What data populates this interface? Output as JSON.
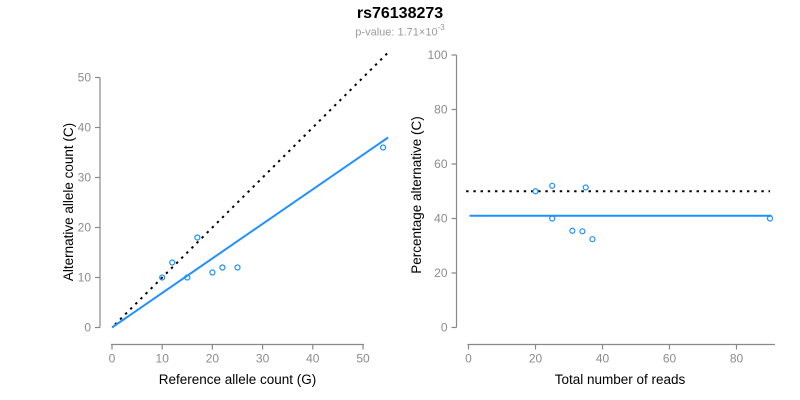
{
  "header": {
    "title": "rs76138273",
    "pvalue_text": "p-value: 1.71×10",
    "pvalue_exponent": "-3"
  },
  "colors": {
    "accent_blue": "#1E90FF",
    "line_black": "#000000",
    "axis_gray": "#888888",
    "tick_text_gray": "#8C8C8C",
    "subtitle_gray": "#9A9A9A"
  },
  "chart_data": [
    {
      "type": "scatter",
      "panel": "allele-counts",
      "xlabel": "Reference allele count (G)",
      "ylabel": "Alternative allele count (C)",
      "xticks": [
        0,
        10,
        20,
        30,
        40,
        50
      ],
      "yticks": [
        0,
        10,
        20,
        30,
        40,
        50
      ],
      "xlim": [
        0,
        55
      ],
      "ylim": [
        0,
        55
      ],
      "grid": false,
      "points": [
        [
          10,
          10
        ],
        [
          12,
          13
        ],
        [
          15,
          10
        ],
        [
          17,
          18
        ],
        [
          20,
          11
        ],
        [
          22,
          12
        ],
        [
          25,
          12
        ],
        [
          54,
          36
        ]
      ],
      "lines": [
        {
          "name": "identity-line",
          "style": "dotted",
          "color": "#000000",
          "from": [
            0.6,
            0.6
          ],
          "to": [
            54.8,
            54.8
          ]
        },
        {
          "name": "fit-line",
          "style": "solid",
          "color": "#1E90FF",
          "from": [
            0,
            0
          ],
          "to": [
            55,
            38
          ]
        }
      ]
    },
    {
      "type": "scatter",
      "panel": "percentage-alternative",
      "xlabel": "Total number of reads",
      "ylabel": "Percentage alternative (C)",
      "xticks": [
        0,
        20,
        40,
        60,
        80
      ],
      "yticks": [
        0,
        20,
        40,
        60,
        80,
        100
      ],
      "xlim": [
        0,
        91
      ],
      "ylim": [
        0,
        100
      ],
      "grid": false,
      "points": [
        [
          20,
          50
        ],
        [
          25,
          52
        ],
        [
          25,
          40
        ],
        [
          31,
          35.5
        ],
        [
          34,
          35.3
        ],
        [
          35,
          51.4
        ],
        [
          37,
          32.4
        ],
        [
          90,
          40
        ]
      ],
      "lines": [
        {
          "name": "expected-50pct-line",
          "style": "dotted",
          "color": "#000000",
          "from": [
            -0.7,
            50
          ],
          "to": [
            90,
            50
          ]
        },
        {
          "name": "fit-line",
          "style": "solid",
          "color": "#1E90FF",
          "from": [
            0.3,
            41
          ],
          "to": [
            90.5,
            41
          ]
        }
      ]
    }
  ]
}
